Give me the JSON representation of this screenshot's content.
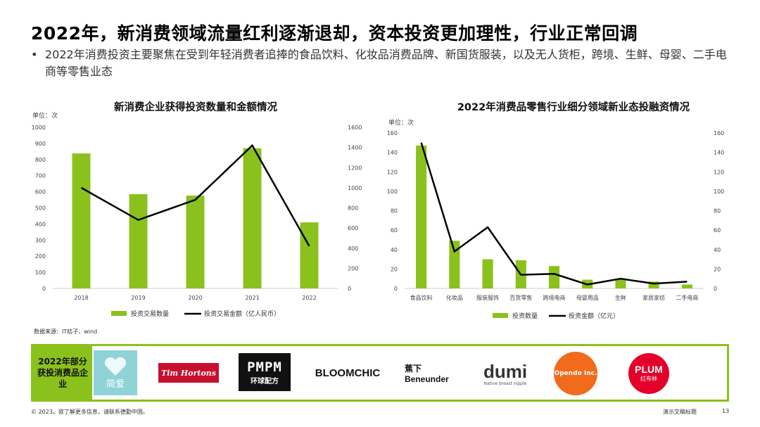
{
  "page": {
    "title": "2022年，新消费领域流量红利逐渐退却，资本投资更加理性，行业正常回调",
    "bullet": "2022年消费投资主要聚焦在受到年轻消费者追捧的食品饮料、化妆品消费品牌、新国货服装，以及无人货柜，跨境、生鲜、母婴、二手电商等零售业态",
    "bullet_dot": "•",
    "source": "数据来源：IT桔子，wind",
    "band_label": "2022年部分获投消费品企业",
    "footer_left": "© 2023。欲了解更多信息，请联系德勤中国。",
    "footer_right": "演示文稿标题",
    "page_number": "13"
  },
  "logos": [
    {
      "name": "jianai",
      "text": "简爱",
      "color": "#8fd3d8"
    },
    {
      "name": "tim-hortons",
      "text": "Tim Hortons",
      "color": "#c8102e"
    },
    {
      "name": "pmpm",
      "text": "PMPM",
      "subtext": "环球配方",
      "color": "#111111"
    },
    {
      "name": "bloomchic",
      "text": "BLOOMCHIC",
      "color": "#111111"
    },
    {
      "name": "beneunder",
      "text": "蕉下",
      "subtext": "Beneunder",
      "color": "#111111"
    },
    {
      "name": "dumi",
      "text": "dumi",
      "subtext": "Native breast nipple",
      "color": "#333333"
    },
    {
      "name": "opendo",
      "text": "Opendo Inc.",
      "color": "#f26b1d"
    },
    {
      "name": "plum",
      "text": "PLUM",
      "subtext": "红布林",
      "color": "#e4002b"
    }
  ],
  "chart_data": [
    {
      "type": "bar",
      "title": "新消费企业获得投资数量和金额情况",
      "unit_label": "单位：次",
      "categories": [
        "2018",
        "2019",
        "2020",
        "2021",
        "2022"
      ],
      "series": [
        {
          "name": "投资交易数量",
          "type": "bar",
          "axis": "left",
          "color": "#8bc11c",
          "values": [
            838,
            585,
            576,
            870,
            410
          ]
        },
        {
          "name": "投资交易金额（亿人民币）",
          "type": "line",
          "axis": "right",
          "color": "#000000",
          "values": [
            1000,
            680,
            880,
            1420,
            420
          ]
        }
      ],
      "ylim_left": [
        0,
        1000
      ],
      "yticks_left": [
        "0",
        "100",
        "200",
        "300",
        "400",
        "500",
        "600",
        "700",
        "800",
        "900",
        "1000"
      ],
      "ylim_right": [
        0,
        1600
      ],
      "yticks_right": [
        "0",
        "200",
        "400",
        "600",
        "800",
        "1000",
        "1200",
        "1400",
        "1600"
      ],
      "legend_position": "bottom"
    },
    {
      "type": "bar",
      "title": "2022年消费品零售行业细分领域新业态投融资情况",
      "unit_label": "单位：次",
      "categories": [
        "食品饮料",
        "化妆品",
        "服装服饰",
        "百货零售",
        "跨境电商",
        "母婴用品",
        "生鲜",
        "家居家纺",
        "二手电商"
      ],
      "series": [
        {
          "name": "投资数量",
          "type": "bar",
          "axis": "left",
          "color": "#8bc11c",
          "values": [
            147,
            49,
            30,
            29,
            23,
            9,
            10,
            7,
            4
          ]
        },
        {
          "name": "投资金额（亿元）",
          "type": "line",
          "axis": "right",
          "color": "#000000",
          "values": [
            150,
            38,
            63,
            14,
            15,
            4,
            10,
            5,
            7
          ]
        }
      ],
      "ylim_left": [
        0,
        160
      ],
      "yticks_left": [
        "0",
        "20",
        "40",
        "60",
        "80",
        "100",
        "120",
        "140",
        "160"
      ],
      "ylim_right": [
        0,
        160
      ],
      "yticks_right": [
        "0",
        "20",
        "40",
        "60",
        "80",
        "100",
        "120",
        "140",
        "160"
      ],
      "legend_position": "bottom"
    }
  ]
}
